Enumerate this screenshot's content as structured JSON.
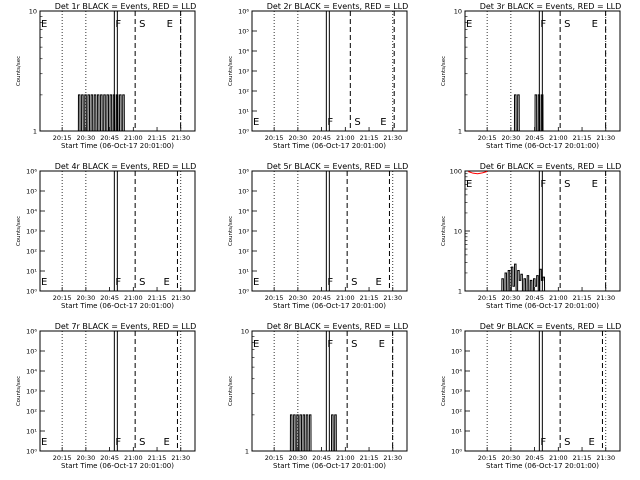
{
  "colors": {
    "events": "#000000",
    "lld": "#ff0000",
    "background": "#ffffff"
  },
  "x_tick_labels": [
    "20:15",
    "20:30",
    "20:45",
    "21:00",
    "21:15",
    "21:30"
  ],
  "x_title": "Start Time (06-Oct-17 20:01:00)",
  "y_title": "Counts/sec",
  "marker_labels": {
    "entry": "E",
    "flare": "F",
    "saa": "S",
    "exit": "E"
  },
  "chart_data": [
    {
      "type": "line",
      "title": "Det 1r BLACK = Events, RED = LLD",
      "yscale": "log",
      "ylim": [
        1,
        10
      ],
      "y_tick_labels": [
        "1",
        "10"
      ],
      "xlim": [
        "20:01",
        "21:39"
      ],
      "markers": {
        "entry": "20:01",
        "flare": "20:48",
        "saa": "20:58",
        "exit": "21:16"
      },
      "events": [
        [
          "20:24",
          1
        ],
        [
          "20:25",
          2
        ],
        [
          "20:26",
          1
        ],
        [
          "20:27",
          2
        ],
        [
          "20:28",
          1
        ],
        [
          "20:29",
          2
        ],
        [
          "20:30",
          1
        ],
        [
          "20:31",
          2
        ],
        [
          "20:32",
          1
        ],
        [
          "20:33",
          2
        ],
        [
          "20:34",
          1
        ],
        [
          "20:35",
          2
        ],
        [
          "20:36",
          1
        ],
        [
          "20:37",
          2
        ],
        [
          "20:38",
          1
        ],
        [
          "20:39",
          2
        ],
        [
          "20:40",
          1
        ],
        [
          "20:41",
          2
        ],
        [
          "20:42",
          1
        ],
        [
          "20:43",
          2
        ],
        [
          "20:44",
          1
        ],
        [
          "20:45",
          2
        ],
        [
          "20:46",
          1
        ],
        [
          "20:47",
          2
        ],
        [
          "20:48",
          1
        ],
        [
          "20:49",
          2
        ],
        [
          "20:50",
          1
        ],
        [
          "20:51",
          2
        ],
        [
          "20:52",
          1
        ],
        [
          "20:53",
          2
        ],
        [
          "20:54",
          1
        ]
      ],
      "lld": []
    },
    {
      "type": "line",
      "title": "Det 2r BLACK = Events, RED = LLD",
      "yscale": "log",
      "ylim": [
        1,
        1000000
      ],
      "y_tick_labels": [
        "10⁰",
        "10¹",
        "10²",
        "10³",
        "10⁴",
        "10⁵",
        "10⁶"
      ],
      "xlim": [
        "20:01",
        "21:39"
      ],
      "markers": {
        "entry": "20:01",
        "flare": "20:48",
        "saa": "21:00",
        "exit": "21:17"
      },
      "events": [],
      "lld": []
    },
    {
      "type": "line",
      "title": "Det 3r BLACK = Events, RED = LLD",
      "yscale": "log",
      "ylim": [
        1,
        10
      ],
      "y_tick_labels": [
        "1",
        "10"
      ],
      "xlim": [
        "20:01",
        "21:39"
      ],
      "markers": {
        "entry": "20:01",
        "flare": "20:48",
        "saa": "20:58",
        "exit": "21:16"
      },
      "events": [
        [
          "20:31",
          1
        ],
        [
          "20:32",
          2
        ],
        [
          "20:33",
          1
        ],
        [
          "20:34",
          2
        ],
        [
          "20:35",
          1
        ],
        [
          "20:36",
          1
        ],
        [
          "20:44",
          1
        ],
        [
          "20:45",
          2
        ],
        [
          "20:46",
          1
        ],
        [
          "20:47",
          2
        ],
        [
          "20:48",
          1
        ],
        [
          "20:49",
          2
        ],
        [
          "20:50",
          1
        ]
      ],
      "lld": []
    },
    {
      "type": "line",
      "title": "Det 4r BLACK = Events, RED = LLD",
      "yscale": "log",
      "ylim": [
        1,
        1000000
      ],
      "y_tick_labels": [
        "10⁰",
        "10¹",
        "10²",
        "10³",
        "10⁴",
        "10⁵",
        "10⁶"
      ],
      "xlim": [
        "20:01",
        "21:39"
      ],
      "markers": {
        "entry": "20:01",
        "flare": "20:48",
        "saa": "20:58",
        "exit": "21:14"
      },
      "events": [],
      "lld": []
    },
    {
      "type": "line",
      "title": "Det 5r BLACK = Events, RED = LLD",
      "yscale": "log",
      "ylim": [
        1,
        1000000
      ],
      "y_tick_labels": [
        "10⁰",
        "10¹",
        "10²",
        "10³",
        "10⁴",
        "10⁵",
        "10⁶"
      ],
      "xlim": [
        "20:01",
        "21:39"
      ],
      "markers": {
        "entry": "20:01",
        "flare": "20:48",
        "saa": "20:58",
        "exit": "21:14"
      },
      "events": [],
      "lld": []
    },
    {
      "type": "line",
      "title": "Det 6r BLACK = Events, RED = LLD",
      "yscale": "log",
      "ylim": [
        1,
        100
      ],
      "y_tick_labels": [
        "1",
        "10",
        "100"
      ],
      "xlim": [
        "20:01",
        "21:39"
      ],
      "markers": {
        "entry": "20:01",
        "flare": "20:48",
        "saa": "20:58",
        "exit": "21:16"
      },
      "events": [
        [
          "20:23",
          1
        ],
        [
          "20:24",
          1.6
        ],
        [
          "20:25",
          1
        ],
        [
          "20:26",
          2
        ],
        [
          "20:27",
          1
        ],
        [
          "20:28",
          2.2
        ],
        [
          "20:29",
          1
        ],
        [
          "20:30",
          2.5
        ],
        [
          "20:31",
          1.2
        ],
        [
          "20:32",
          2.8
        ],
        [
          "20:33",
          1
        ],
        [
          "20:34",
          2.2
        ],
        [
          "20:35",
          1.5
        ],
        [
          "20:36",
          1.9
        ],
        [
          "20:37",
          1
        ],
        [
          "20:38",
          1.6
        ],
        [
          "20:39",
          1
        ],
        [
          "20:40",
          1.8
        ],
        [
          "20:41",
          1
        ],
        [
          "20:42",
          1.5
        ],
        [
          "20:43",
          1
        ],
        [
          "20:44",
          1.6
        ],
        [
          "20:45",
          1.2
        ],
        [
          "20:46",
          1.8
        ],
        [
          "20:47",
          1
        ],
        [
          "20:48",
          2.3
        ],
        [
          "20:49",
          1.5
        ],
        [
          "20:50",
          1.7
        ],
        [
          "20:51",
          1
        ]
      ],
      "lld": [
        [
          "20:03",
          98
        ],
        [
          "20:06",
          92
        ],
        [
          "20:09",
          90
        ],
        [
          "20:12",
          93
        ],
        [
          "20:15",
          98
        ]
      ]
    },
    {
      "type": "line",
      "title": "Det 7r BLACK = Events, RED = LLD",
      "yscale": "log",
      "ylim": [
        1,
        1000000
      ],
      "y_tick_labels": [
        "10⁰",
        "10¹",
        "10²",
        "10³",
        "10⁴",
        "10⁵",
        "10⁶"
      ],
      "xlim": [
        "20:01",
        "21:39"
      ],
      "markers": {
        "entry": "20:01",
        "flare": "20:48",
        "saa": "20:58",
        "exit": "21:14"
      },
      "events": [],
      "lld": []
    },
    {
      "type": "line",
      "title": "Det 8r BLACK = Events, RED = LLD",
      "yscale": "log",
      "ylim": [
        1,
        10
      ],
      "y_tick_labels": [
        "1",
        "10"
      ],
      "xlim": [
        "20:01",
        "21:39"
      ],
      "markers": {
        "entry": "20:01",
        "flare": "20:48",
        "saa": "20:58",
        "exit": "21:16"
      },
      "events": [
        [
          "20:24",
          1
        ],
        [
          "20:25",
          2
        ],
        [
          "20:26",
          1
        ],
        [
          "20:27",
          2
        ],
        [
          "20:28",
          1
        ],
        [
          "20:29",
          2
        ],
        [
          "20:30",
          1
        ],
        [
          "20:31",
          2
        ],
        [
          "20:32",
          1
        ],
        [
          "20:33",
          2
        ],
        [
          "20:34",
          1
        ],
        [
          "20:35",
          2
        ],
        [
          "20:36",
          1
        ],
        [
          "20:37",
          2
        ],
        [
          "20:38",
          1
        ],
        [
          "20:39",
          1
        ],
        [
          "20:50",
          1
        ],
        [
          "20:51",
          2
        ],
        [
          "20:52",
          1
        ],
        [
          "20:53",
          2
        ],
        [
          "20:54",
          1
        ]
      ],
      "lld": []
    },
    {
      "type": "line",
      "title": "Det 9r BLACK = Events, RED = LLD",
      "yscale": "log",
      "ylim": [
        1,
        1000000
      ],
      "y_tick_labels": [
        "10⁰",
        "10¹",
        "10²",
        "10³",
        "10⁴",
        "10⁵",
        "10⁶"
      ],
      "xlim": [
        "20:01",
        "21:39"
      ],
      "markers": {
        "flare": "20:48",
        "saa": "20:58",
        "exit": "21:14"
      },
      "events": [],
      "lld": []
    }
  ]
}
